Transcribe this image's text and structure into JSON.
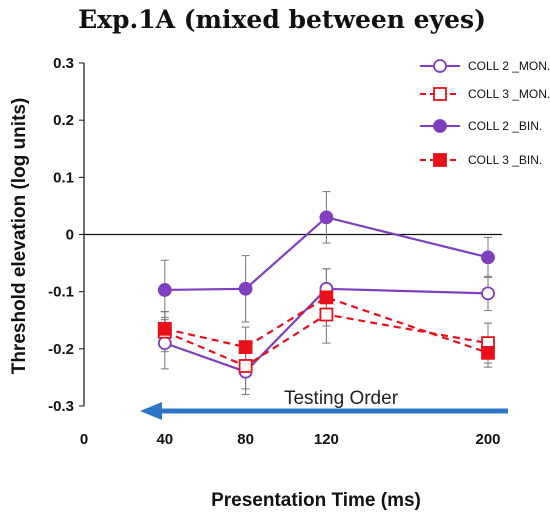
{
  "chart_data": {
    "type": "line",
    "title": "Exp.1A (mixed between eyes)",
    "xlabel": "Presentation Time (ms)",
    "ylabel": "Threshold elevation (log units)",
    "x_ticks": [
      "0",
      "40",
      "80",
      "120",
      "200"
    ],
    "y_ticks": [
      "0.3",
      "0.2",
      "0.1",
      "0",
      "-0.1",
      "-0.2",
      "-0.3"
    ],
    "xlim": [
      0,
      200
    ],
    "ylim": [
      -0.3,
      0.3
    ],
    "x": [
      40,
      80,
      120,
      200
    ],
    "grid": false,
    "legend_position": "top-right",
    "series": [
      {
        "name": "COLL 2 _MON.",
        "values": [
          -0.19,
          -0.24,
          -0.095,
          -0.103
        ],
        "errors": [
          0.045,
          0.04,
          0.035,
          0.03
        ],
        "color": "#7F3FBF",
        "dashed": false,
        "marker": "circle",
        "filled": false
      },
      {
        "name": "COLL 3 _MON.",
        "values": [
          -0.17,
          -0.23,
          -0.14,
          -0.19
        ],
        "errors": [
          0.035,
          0.04,
          0.05,
          0.035
        ],
        "color": "#E8111B",
        "dashed": true,
        "marker": "square",
        "filled": false
      },
      {
        "name": "COLL 2 _BIN.",
        "values": [
          -0.097,
          -0.095,
          0.03,
          -0.04
        ],
        "errors": [
          0.052,
          0.058,
          0.045,
          0.035
        ],
        "color": "#7F3FBF",
        "dashed": false,
        "marker": "circle",
        "filled": true
      },
      {
        "name": "COLL 3 _BIN.",
        "values": [
          -0.165,
          -0.197,
          -0.11,
          -0.207
        ],
        "errors": [
          0.03,
          0.035,
          0.05,
          0.025
        ],
        "color": "#E8111B",
        "dashed": true,
        "marker": "square",
        "filled": true
      }
    ],
    "annotations": [
      {
        "text": "Testing Order",
        "arrow": "leftward",
        "color": "#2E75C7"
      }
    ]
  }
}
